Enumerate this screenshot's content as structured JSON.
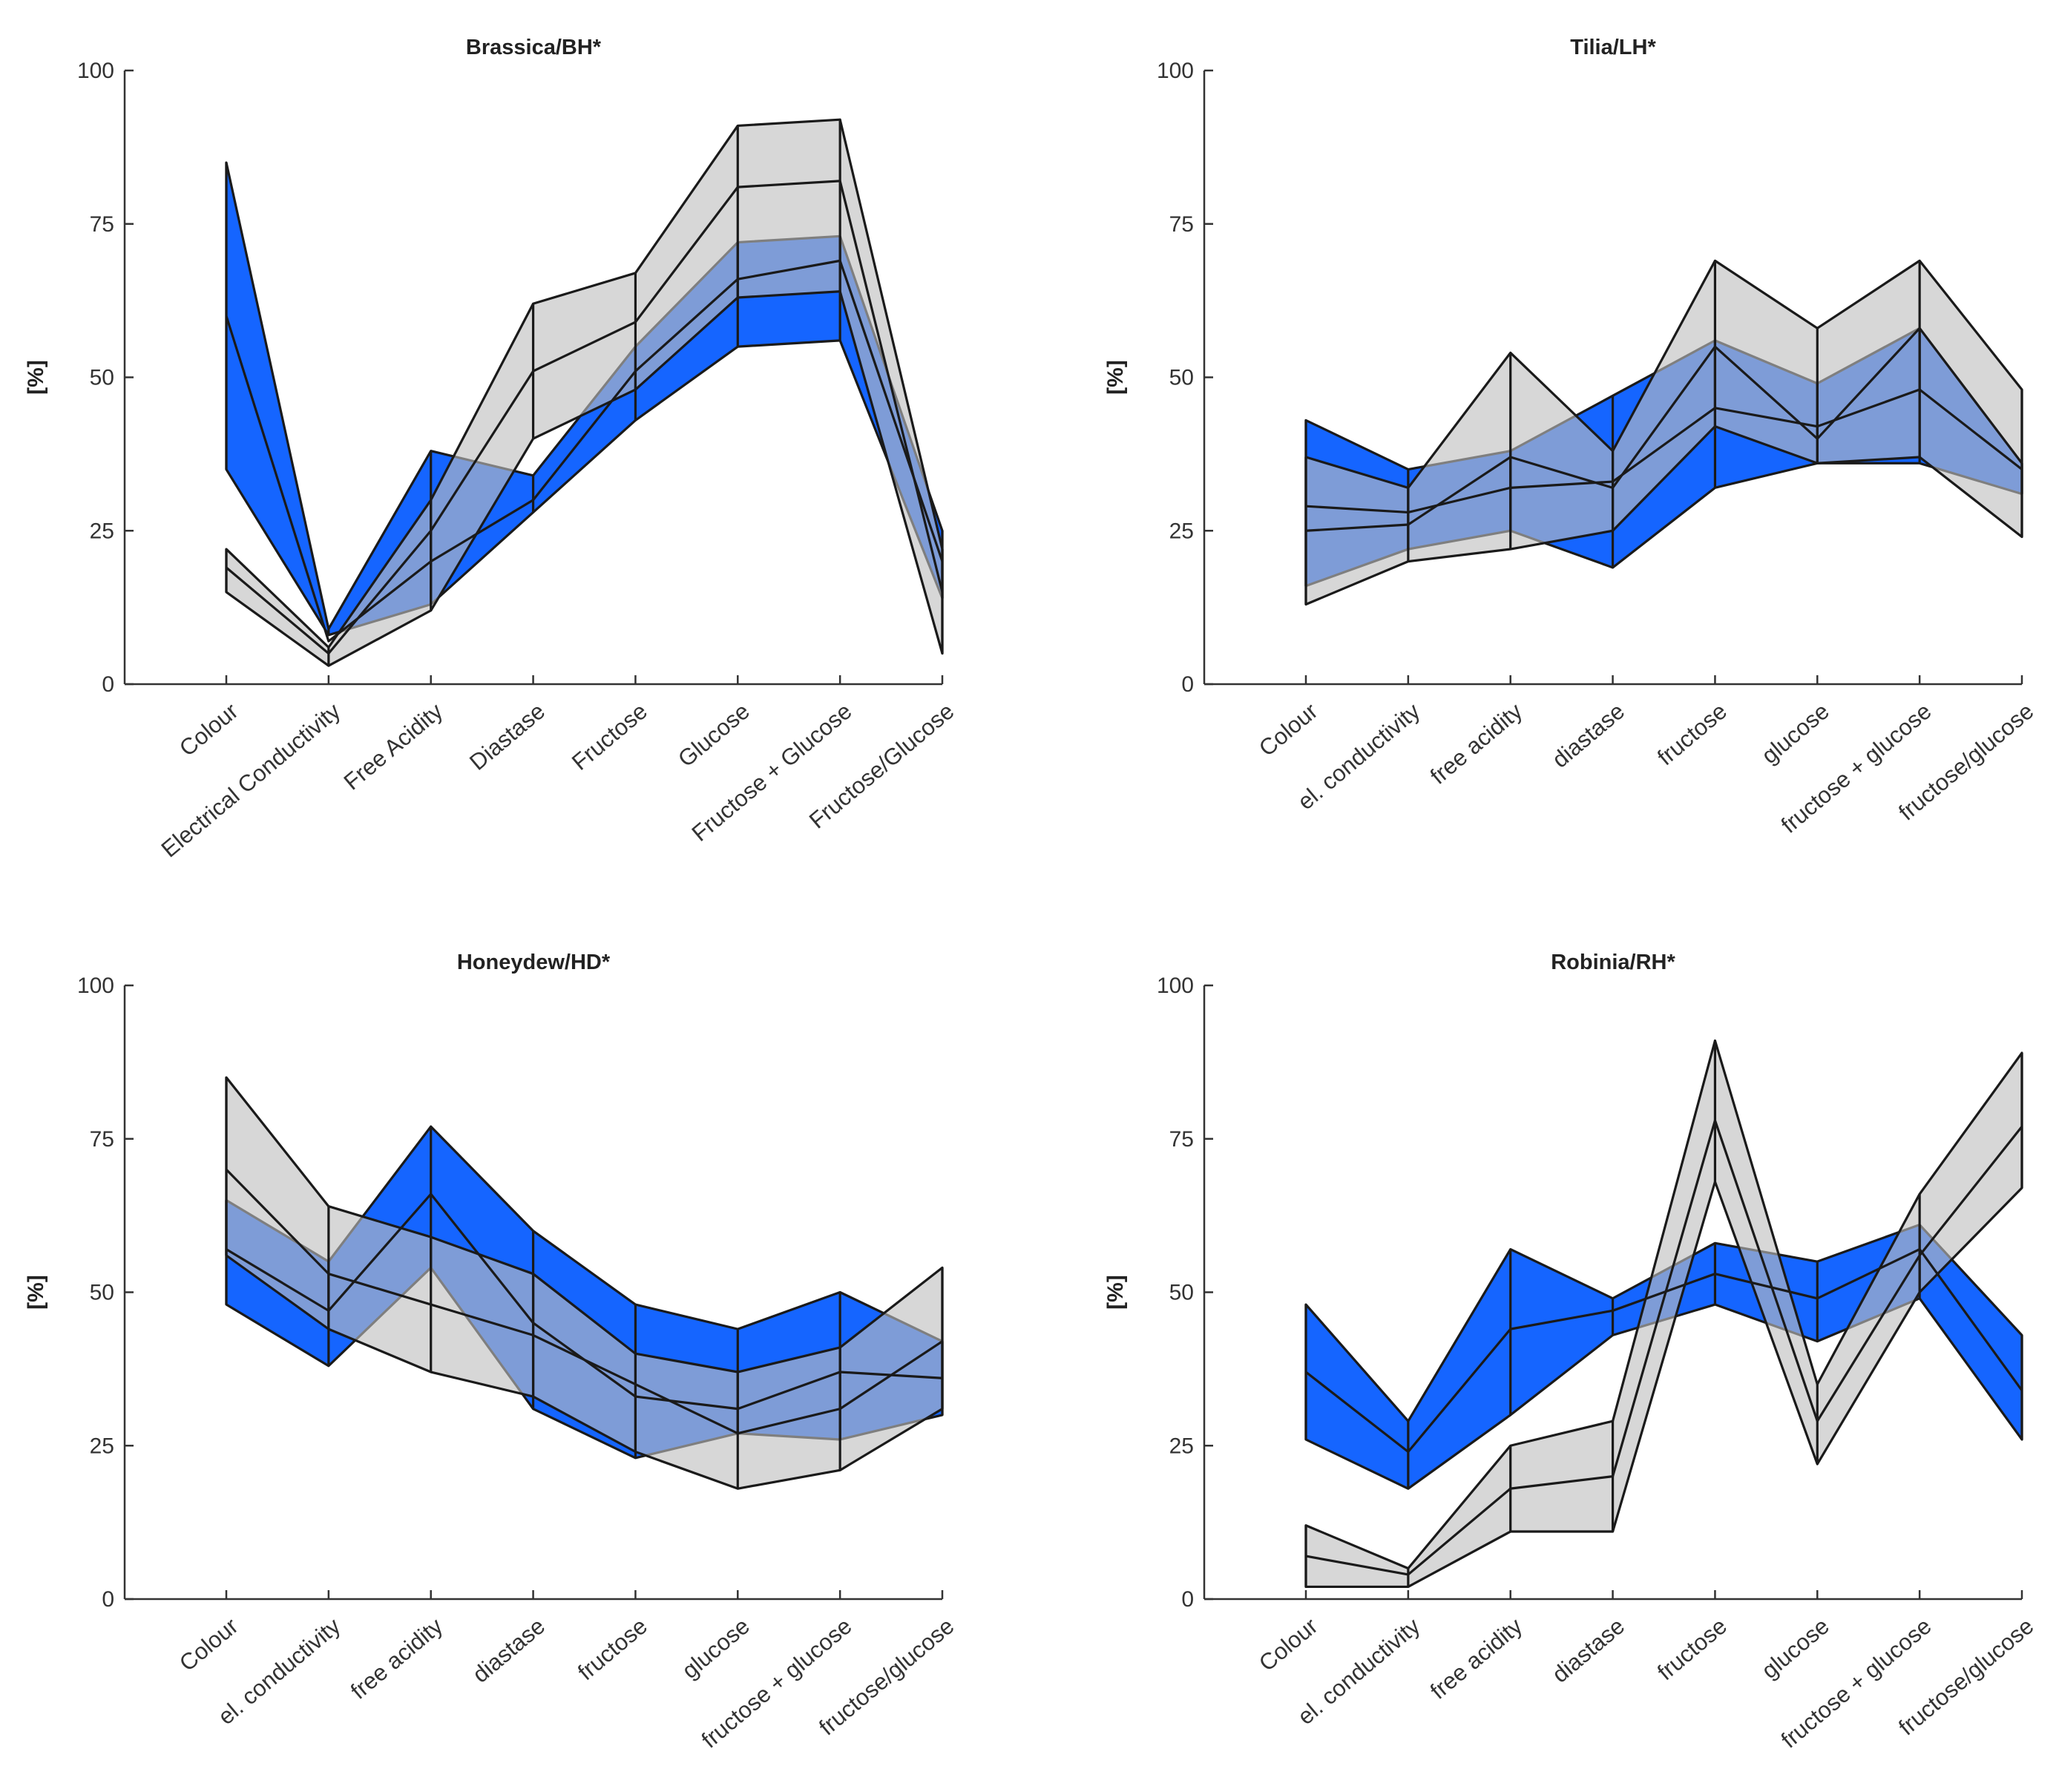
{
  "colors": {
    "blue_band": "#1565ff",
    "gray_band": "#bfbfbf",
    "outline": "#1a1a1a"
  },
  "chart_data": [
    {
      "type": "line",
      "title": "Brassica/BH*",
      "ylabel": "[%]",
      "ylim": [
        0,
        100
      ],
      "yticks": [
        "0",
        "25",
        "50",
        "75",
        "100"
      ],
      "categories": [
        "Colour",
        "Electrical Conductivity",
        "Free Acidity",
        "Diastase",
        "Fructose",
        "Glucose",
        "Fructose + Glucose",
        "Fructose/Glucose"
      ],
      "series": [
        {
          "name": "blue",
          "low": [
            35,
            8,
            13,
            28,
            43,
            55,
            56,
            14
          ],
          "mid": [
            60,
            7,
            20,
            30,
            51,
            66,
            69,
            20
          ],
          "high": [
            85,
            9,
            38,
            34,
            55,
            72,
            73,
            25
          ]
        },
        {
          "name": "gray",
          "low": [
            15,
            3,
            12,
            40,
            48,
            63,
            64,
            5
          ],
          "mid": [
            19,
            5,
            25,
            51,
            59,
            81,
            82,
            15
          ],
          "high": [
            22,
            6,
            30,
            62,
            67,
            91,
            92,
            22
          ]
        }
      ]
    },
    {
      "type": "line",
      "title": "Tilia/LH*",
      "ylabel": "[%]",
      "ylim": [
        0,
        100
      ],
      "yticks": [
        "0",
        "25",
        "50",
        "75",
        "100"
      ],
      "categories": [
        "Colour",
        "el. conductivity",
        "free acidity",
        "diastase",
        "fructose",
        "glucose",
        "fructose + glucose",
        "fructose/glucose"
      ],
      "series": [
        {
          "name": "blue",
          "low": [
            16,
            22,
            25,
            19,
            32,
            36,
            36,
            31
          ],
          "mid": [
            29,
            28,
            32,
            33,
            45,
            42,
            48,
            35
          ],
          "high": [
            43,
            35,
            38,
            47,
            56,
            49,
            58,
            36
          ]
        },
        {
          "name": "gray",
          "low": [
            13,
            20,
            22,
            25,
            42,
            36,
            37,
            24
          ],
          "mid": [
            25,
            26,
            37,
            32,
            55,
            40,
            58,
            36
          ],
          "high": [
            37,
            32,
            54,
            38,
            69,
            58,
            69,
            48
          ]
        }
      ]
    },
    {
      "type": "line",
      "title": "Honeydew/HD*",
      "ylabel": "[%]",
      "ylim": [
        0,
        100
      ],
      "yticks": [
        "0",
        "25",
        "50",
        "75",
        "100"
      ],
      "categories": [
        "Colour",
        "el. conductivity",
        "free acidity",
        "diastase",
        "fructose",
        "glucose",
        "fructose + glucose",
        "fructose/glucose"
      ],
      "series": [
        {
          "name": "blue",
          "low": [
            48,
            38,
            54,
            31,
            23,
            27,
            26,
            30
          ],
          "mid": [
            57,
            47,
            66,
            45,
            33,
            31,
            37,
            36
          ],
          "high": [
            65,
            55,
            77,
            60,
            48,
            44,
            50,
            42
          ]
        },
        {
          "name": "gray",
          "low": [
            56,
            44,
            37,
            33,
            24,
            18,
            21,
            31
          ],
          "mid": [
            70,
            53,
            48,
            43,
            35,
            27,
            31,
            42
          ],
          "high": [
            85,
            64,
            59,
            53,
            40,
            37,
            41,
            54
          ]
        }
      ]
    },
    {
      "type": "line",
      "title": "Robinia/RH*",
      "ylabel": "[%]",
      "ylim": [
        0,
        100
      ],
      "yticks": [
        "0",
        "25",
        "50",
        "75",
        "100"
      ],
      "categories": [
        "Colour",
        "el. conductivity",
        "free acidity",
        "diastase",
        "fructose",
        "glucose",
        "fructose + glucose",
        "fructose/glucose"
      ],
      "series": [
        {
          "name": "blue",
          "low": [
            26,
            18,
            30,
            43,
            48,
            42,
            49,
            26
          ],
          "mid": [
            37,
            24,
            44,
            47,
            53,
            49,
            57,
            34
          ],
          "high": [
            48,
            29,
            57,
            49,
            58,
            55,
            61,
            43
          ]
        },
        {
          "name": "gray",
          "low": [
            2,
            2,
            11,
            11,
            68,
            22,
            50,
            67
          ],
          "mid": [
            7,
            4,
            18,
            20,
            78,
            29,
            56,
            77
          ],
          "high": [
            12,
            5,
            25,
            29,
            91,
            35,
            66,
            89
          ]
        }
      ]
    }
  ]
}
